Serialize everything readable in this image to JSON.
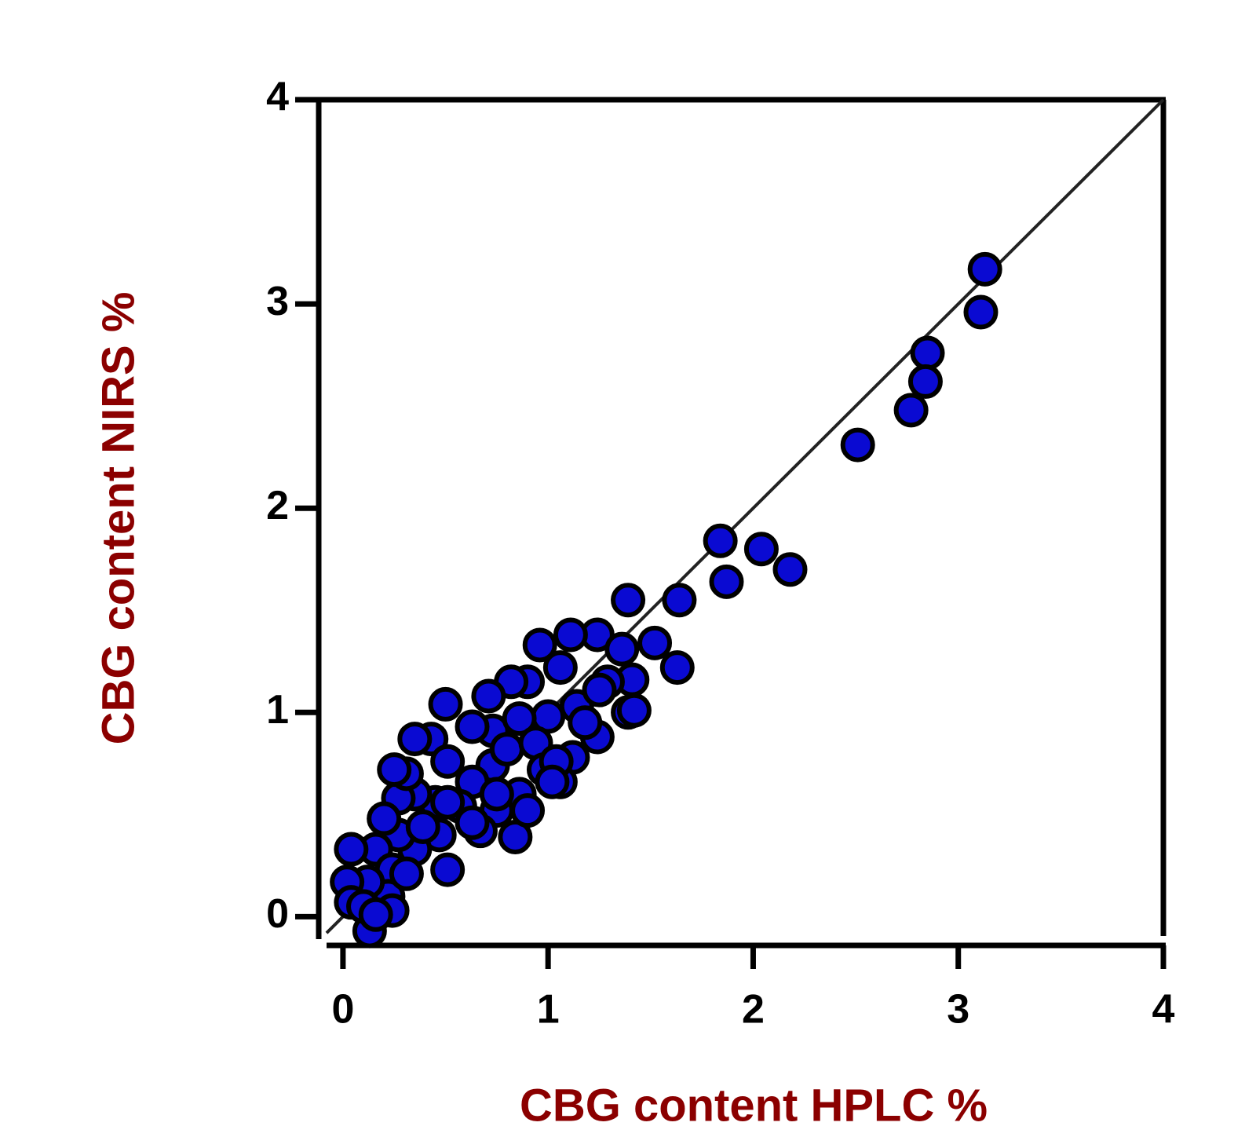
{
  "chart_data": {
    "type": "scatter",
    "x_label": "CBG content HPLC %",
    "y_label": "CBG content NIRS %",
    "xlim": [
      -0.08,
      4
    ],
    "ylim": [
      -0.11,
      4
    ],
    "xticks": [
      0,
      1,
      2,
      3,
      4
    ],
    "yticks": [
      0,
      1,
      2,
      3,
      4
    ],
    "identity_line": true,
    "color": "#0a0ad2",
    "x": [
      3.13,
      3.11,
      2.85,
      2.84,
      2.77,
      2.51,
      1.84,
      1.87,
      2.04,
      2.18,
      1.64,
      1.39,
      1.63,
      1.52,
      1.39,
      1.42,
      1.24,
      1.11,
      0.96,
      1.06,
      1.36,
      1.41,
      1.29,
      0.9,
      1.14,
      1.0,
      1.24,
      1.12,
      1.06,
      0.82,
      0.71,
      0.5,
      0.43,
      0.35,
      0.73,
      0.86,
      0.63,
      0.51,
      0.73,
      0.8,
      0.94,
      0.63,
      0.86,
      0.75,
      0.67,
      0.84,
      0.45,
      0.35,
      0.27,
      0.31,
      0.25,
      0.51,
      0.47,
      0.35,
      0.27,
      0.2,
      0.16,
      0.24,
      0.22,
      0.24,
      0.12,
      0.04,
      0.02,
      0.04,
      0.13,
      0.1,
      0.16,
      0.31,
      0.39,
      0.57,
      0.63,
      0.98,
      1.04,
      1.18,
      1.25,
      0.75,
      0.51,
      0.9,
      1.02
    ],
    "y": [
      3.17,
      2.96,
      2.76,
      2.62,
      2.48,
      2.31,
      1.84,
      1.64,
      1.8,
      1.7,
      1.55,
      1.55,
      1.22,
      1.34,
      1.0,
      1.01,
      1.38,
      1.38,
      1.33,
      1.22,
      1.31,
      1.16,
      1.15,
      1.15,
      1.03,
      0.98,
      0.88,
      0.78,
      0.66,
      1.15,
      1.08,
      1.04,
      0.87,
      0.87,
      0.91,
      0.97,
      0.93,
      0.76,
      0.74,
      0.82,
      0.85,
      0.66,
      0.6,
      0.52,
      0.42,
      0.39,
      0.56,
      0.6,
      0.58,
      0.7,
      0.72,
      0.23,
      0.4,
      0.33,
      0.4,
      0.48,
      0.33,
      0.23,
      0.1,
      0.03,
      0.17,
      0.33,
      0.17,
      0.07,
      -0.07,
      0.05,
      0.01,
      0.21,
      0.44,
      0.54,
      0.46,
      0.72,
      0.76,
      0.95,
      1.11,
      0.6,
      0.56,
      0.52,
      0.66
    ]
  }
}
